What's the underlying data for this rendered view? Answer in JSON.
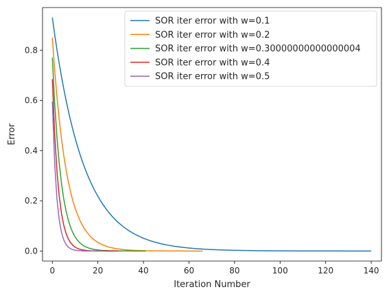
{
  "chart_data": {
    "type": "line",
    "title": "",
    "xlabel": "Iteration Number",
    "ylabel": "Error",
    "xlim": [
      -4.3,
      144.5
    ],
    "ylim": [
      -0.04,
      0.97
    ],
    "x_ticks": [
      0,
      20,
      40,
      60,
      80,
      100,
      120,
      140
    ],
    "y_ticks": [
      0.0,
      0.2,
      0.4,
      0.6,
      0.8
    ],
    "grid": false,
    "legend_position": "top-right",
    "series": [
      {
        "name": "SOR iter error with w=0.1",
        "color": "#1f77b4",
        "n_iters": 140,
        "start": 0.93,
        "decay_rate": 0.93
      },
      {
        "name": "SOR iter error with w=0.2",
        "color": "#ff7f0e",
        "n_iters": 66,
        "start": 0.85,
        "decay_rate": 0.852
      },
      {
        "name": "SOR iter error with w=0.30000000000000004",
        "color": "#2ca02c",
        "n_iters": 41,
        "start": 0.77,
        "decay_rate": 0.77
      },
      {
        "name": "SOR iter error with w=0.4",
        "color": "#d62728",
        "n_iters": 29,
        "start": 0.685,
        "decay_rate": 0.685
      },
      {
        "name": "SOR iter error with w=0.5",
        "color": "#9467bd",
        "n_iters": 22,
        "start": 0.595,
        "decay_rate": 0.595
      }
    ]
  }
}
